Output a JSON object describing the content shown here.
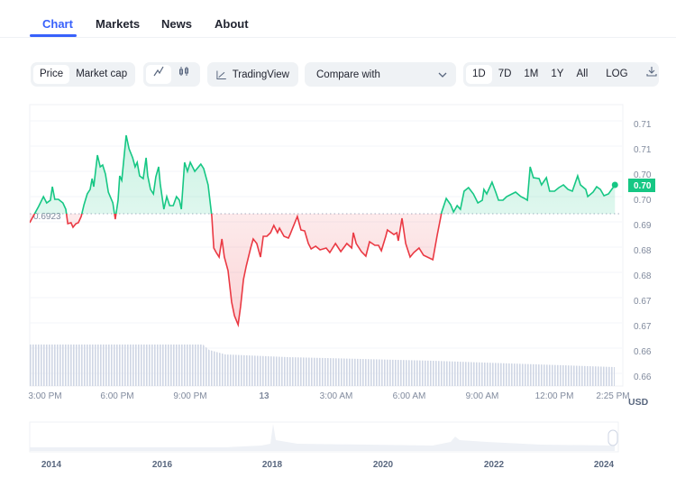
{
  "tabs": [
    {
      "label": "Chart",
      "active": true
    },
    {
      "label": "Markets"
    },
    {
      "label": "News"
    },
    {
      "label": "About"
    }
  ],
  "toolbar": {
    "metric": [
      {
        "label": "Price",
        "active": true
      },
      {
        "label": "Market cap"
      }
    ],
    "chart_types": [
      {
        "icon": "line-chart-icon",
        "active": true
      },
      {
        "icon": "candlestick-icon"
      }
    ],
    "tradingview_label": "TradingView",
    "compare_placeholder": "Compare with",
    "ranges": [
      {
        "label": "1D",
        "active": true
      },
      {
        "label": "7D"
      },
      {
        "label": "1M"
      },
      {
        "label": "1Y"
      },
      {
        "label": "All"
      }
    ],
    "log_label": "LOG",
    "download_icon": "download-icon"
  },
  "colors": {
    "up": "#16c784",
    "down": "#ea3943",
    "accent": "#3861fb"
  },
  "chart_data": {
    "type": "line",
    "baseline": 0.6923,
    "baseline_label": "0.6923",
    "current_price_label": "0.70",
    "currency": "USD",
    "y_tick_labels": [
      "0.71",
      "0.71",
      "0.70",
      "0.70",
      "0.69",
      "0.68",
      "0.68",
      "0.67",
      "0.67",
      "0.66",
      "0.66"
    ],
    "x_tick_labels": [
      "3:00 PM",
      "6:00 PM",
      "9:00 PM",
      "13",
      "3:00 AM",
      "6:00 AM",
      "9:00 AM",
      "12:00 PM",
      "2:25 PM"
    ],
    "grid": true,
    "points": [
      [
        "14:22",
        0.6903
      ],
      [
        "14:44",
        0.6939
      ],
      [
        "14:56",
        0.6961
      ],
      [
        "15:04",
        0.6947
      ],
      [
        "15:13",
        0.6953
      ],
      [
        "15:18",
        0.6983
      ],
      [
        "15:24",
        0.6955
      ],
      [
        "15:33",
        0.6955
      ],
      [
        "15:44",
        0.6947
      ],
      [
        "15:51",
        0.6933
      ],
      [
        "15:56",
        0.6901
      ],
      [
        "16:04",
        0.6903
      ],
      [
        "16:09",
        0.6893
      ],
      [
        "16:16",
        0.6901
      ],
      [
        "16:22",
        0.6903
      ],
      [
        "16:29",
        0.6917
      ],
      [
        "16:36",
        0.6943
      ],
      [
        "16:44",
        0.6967
      ],
      [
        "16:51",
        0.6977
      ],
      [
        "16:56",
        0.7001
      ],
      [
        "17:00",
        0.6983
      ],
      [
        "17:09",
        0.7053
      ],
      [
        "17:16",
        0.7027
      ],
      [
        "17:22",
        0.7031
      ],
      [
        "17:29",
        0.7011
      ],
      [
        "17:36",
        0.6971
      ],
      [
        "17:47",
        0.6947
      ],
      [
        "17:53",
        0.6911
      ],
      [
        "18:00",
        0.6953
      ],
      [
        "18:04",
        0.7007
      ],
      [
        "18:09",
        0.6997
      ],
      [
        "18:20",
        0.7097
      ],
      [
        "18:27",
        0.7067
      ],
      [
        "18:36",
        0.7047
      ],
      [
        "18:42",
        0.7027
      ],
      [
        "18:47",
        0.7037
      ],
      [
        "18:53",
        0.7007
      ],
      [
        "19:02",
        0.7001
      ],
      [
        "19:09",
        0.7047
      ],
      [
        "19:13",
        0.7007
      ],
      [
        "19:20",
        0.6977
      ],
      [
        "19:27",
        0.6967
      ],
      [
        "19:33",
        0.7005
      ],
      [
        "19:40",
        0.7027
      ],
      [
        "19:44",
        0.6989
      ],
      [
        "19:53",
        0.6933
      ],
      [
        "20:00",
        0.6961
      ],
      [
        "20:07",
        0.6941
      ],
      [
        "20:16",
        0.6941
      ],
      [
        "20:24",
        0.6961
      ],
      [
        "20:31",
        0.6953
      ],
      [
        "20:36",
        0.6933
      ],
      [
        "20:44",
        0.7037
      ],
      [
        "20:51",
        0.7017
      ],
      [
        "20:58",
        0.7037
      ],
      [
        "21:09",
        0.7017
      ],
      [
        "21:24",
        0.7033
      ],
      [
        "21:31",
        0.7023
      ],
      [
        "21:42",
        0.6987
      ],
      [
        "21:51",
        0.6917
      ],
      [
        "21:56",
        0.6847
      ],
      [
        "22:02",
        0.6837
      ],
      [
        "22:09",
        0.6827
      ],
      [
        "22:16",
        0.6867
      ],
      [
        "22:22",
        0.6827
      ],
      [
        "22:31",
        0.6797
      ],
      [
        "22:40",
        0.6727
      ],
      [
        "22:47",
        0.6697
      ],
      [
        "22:56",
        0.6677
      ],
      [
        "23:02",
        0.6717
      ],
      [
        "23:09",
        0.6777
      ],
      [
        "23:16",
        0.6807
      ],
      [
        "23:27",
        0.6847
      ],
      [
        "23:33",
        0.6867
      ],
      [
        "23:42",
        0.6857
      ],
      [
        "23:51",
        0.6827
      ],
      [
        "23:58",
        0.6873
      ],
      [
        "00:07",
        0.6873
      ],
      [
        "00:16",
        0.6881
      ],
      [
        "00:24",
        0.6897
      ],
      [
        "00:33",
        0.6881
      ],
      [
        "00:38",
        0.6891
      ],
      [
        "00:49",
        0.6873
      ],
      [
        "01:00",
        0.6869
      ],
      [
        "01:04",
        0.6877
      ],
      [
        "01:22",
        0.6917
      ],
      [
        "01:31",
        0.6887
      ],
      [
        "01:40",
        0.6885
      ],
      [
        "01:49",
        0.6857
      ],
      [
        "01:56",
        0.6845
      ],
      [
        "02:07",
        0.6851
      ],
      [
        "02:18",
        0.6843
      ],
      [
        "02:33",
        0.6847
      ],
      [
        "02:42",
        0.6837
      ],
      [
        "02:56",
        0.6857
      ],
      [
        "03:09",
        0.6839
      ],
      [
        "03:24",
        0.6857
      ],
      [
        "03:36",
        0.6847
      ],
      [
        "03:40",
        0.6881
      ],
      [
        "03:47",
        0.6857
      ],
      [
        "04:00",
        0.6839
      ],
      [
        "04:11",
        0.6829
      ],
      [
        "04:20",
        0.6861
      ],
      [
        "04:33",
        0.6853
      ],
      [
        "04:42",
        0.6853
      ],
      [
        "04:49",
        0.6841
      ],
      [
        "05:00",
        0.6873
      ],
      [
        "05:04",
        0.6887
      ],
      [
        "05:20",
        0.6877
      ],
      [
        "05:27",
        0.6881
      ],
      [
        "05:31",
        0.6863
      ],
      [
        "05:40",
        0.6913
      ],
      [
        "05:49",
        0.6857
      ],
      [
        "06:00",
        0.6827
      ],
      [
        "06:09",
        0.6837
      ],
      [
        "06:22",
        0.6847
      ],
      [
        "06:33",
        0.6831
      ],
      [
        "06:56",
        0.6821
      ],
      [
        "07:07",
        0.6877
      ],
      [
        "07:18",
        0.6927
      ],
      [
        "07:29",
        0.6957
      ],
      [
        "07:40",
        0.6943
      ],
      [
        "07:47",
        0.6927
      ],
      [
        "07:56",
        0.6941
      ],
      [
        "08:04",
        0.6933
      ],
      [
        "08:13",
        0.6973
      ],
      [
        "08:24",
        0.6981
      ],
      [
        "08:36",
        0.6967
      ],
      [
        "08:47",
        0.6947
      ],
      [
        "08:58",
        0.6953
      ],
      [
        "09:02",
        0.6977
      ],
      [
        "09:09",
        0.6967
      ],
      [
        "09:22",
        0.6993
      ],
      [
        "09:31",
        0.6971
      ],
      [
        "09:38",
        0.6953
      ],
      [
        "09:49",
        0.6953
      ],
      [
        "09:58",
        0.6961
      ],
      [
        "10:20",
        0.6971
      ],
      [
        "10:33",
        0.6961
      ],
      [
        "10:42",
        0.6957
      ],
      [
        "10:49",
        0.6953
      ],
      [
        "10:56",
        0.7027
      ],
      [
        "11:04",
        0.7003
      ],
      [
        "11:18",
        0.7001
      ],
      [
        "11:24",
        0.6987
      ],
      [
        "11:36",
        0.7003
      ],
      [
        "11:44",
        0.6973
      ],
      [
        "11:56",
        0.6973
      ],
      [
        "12:07",
        0.6981
      ],
      [
        "12:18",
        0.6987
      ],
      [
        "12:29",
        0.6977
      ],
      [
        "12:40",
        0.6973
      ],
      [
        "12:53",
        0.7007
      ],
      [
        "13:00",
        0.6987
      ],
      [
        "13:13",
        0.6977
      ],
      [
        "13:18",
        0.6961
      ],
      [
        "13:31",
        0.6971
      ],
      [
        "13:40",
        0.6983
      ],
      [
        "13:49",
        0.6977
      ],
      [
        "13:58",
        0.6963
      ],
      [
        "14:09",
        0.6967
      ],
      [
        "14:25",
        0.6987
      ]
    ]
  },
  "navigator": {
    "year_labels": [
      "2014",
      "2016",
      "2018",
      "2020",
      "2022",
      "2024"
    ]
  }
}
